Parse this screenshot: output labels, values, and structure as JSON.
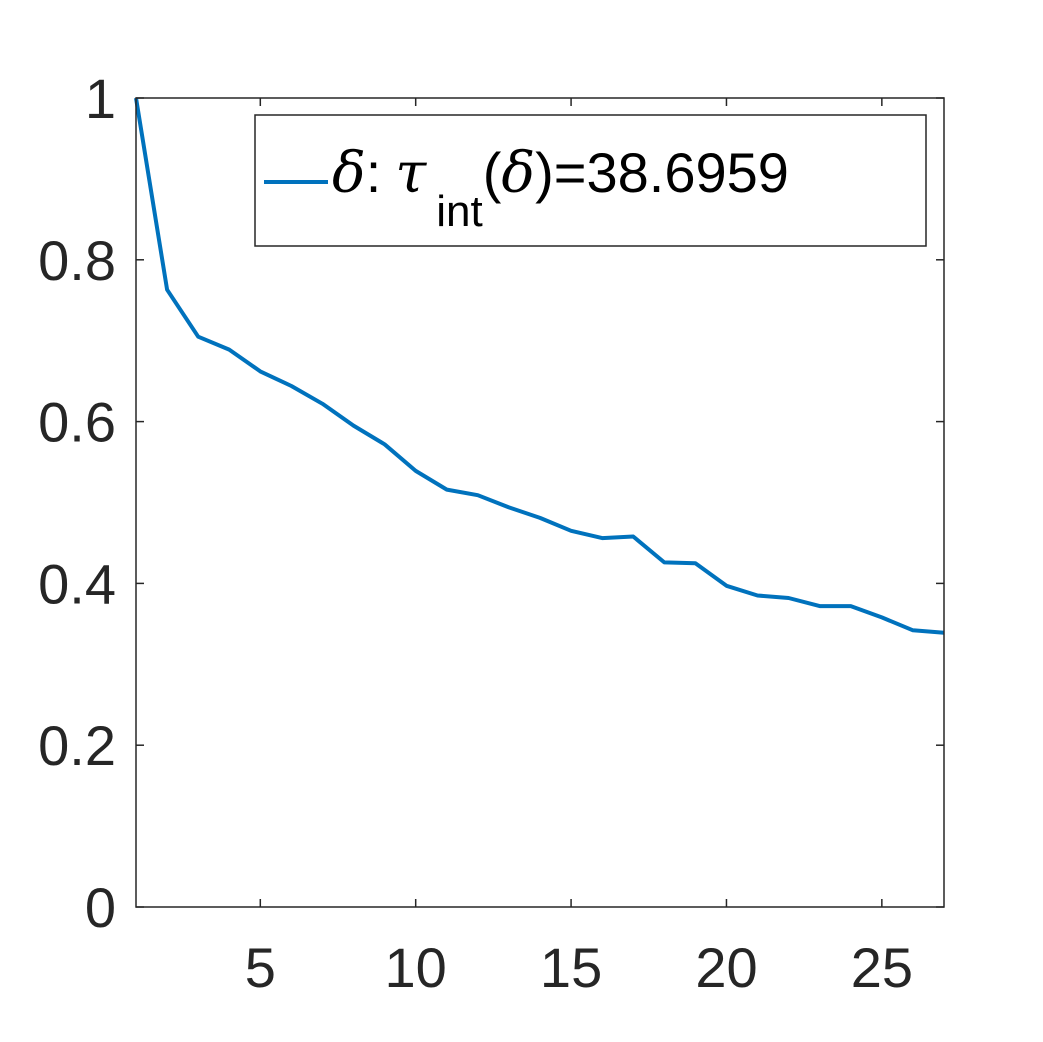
{
  "chart_data": {
    "type": "line",
    "title": "",
    "xlabel": "",
    "ylabel": "",
    "xlim": [
      1,
      27
    ],
    "ylim": [
      0,
      1
    ],
    "xticks": [
      5,
      10,
      15,
      20,
      25
    ],
    "yticks": [
      0,
      0.2,
      0.4,
      0.6,
      0.8,
      1
    ],
    "xtick_labels": [
      "5",
      "10",
      "15",
      "20",
      "25"
    ],
    "ytick_labels": [
      "0",
      "0.2",
      "0.4",
      "0.6",
      "0.8",
      "1"
    ],
    "grid": false,
    "box": true,
    "legend_position": "top-right",
    "series": [
      {
        "name": "δ: τ int(δ)=38.6959",
        "legend": {
          "symbol": "δ",
          "colon": ":",
          "tau": "τ",
          "subscript": "int",
          "paren_open": "(",
          "paren_symbol": "δ",
          "paren_close_eq": ")=",
          "value": "38.6959"
        },
        "color": "#0072BD",
        "x": [
          1,
          2,
          3,
          4,
          5,
          6,
          7,
          8,
          9,
          10,
          11,
          12,
          13,
          14,
          15,
          16,
          17,
          18,
          19,
          20,
          21,
          22,
          23,
          24,
          25,
          26,
          27
        ],
        "y": [
          1.0,
          0.763,
          0.705,
          0.689,
          0.662,
          0.644,
          0.622,
          0.595,
          0.572,
          0.539,
          0.516,
          0.509,
          0.494,
          0.481,
          0.465,
          0.456,
          0.458,
          0.426,
          0.425,
          0.397,
          0.385,
          0.382,
          0.372,
          0.372,
          0.358,
          0.342,
          0.339
        ]
      }
    ],
    "colors": {
      "axis": "#262626",
      "background": "#ffffff"
    }
  }
}
